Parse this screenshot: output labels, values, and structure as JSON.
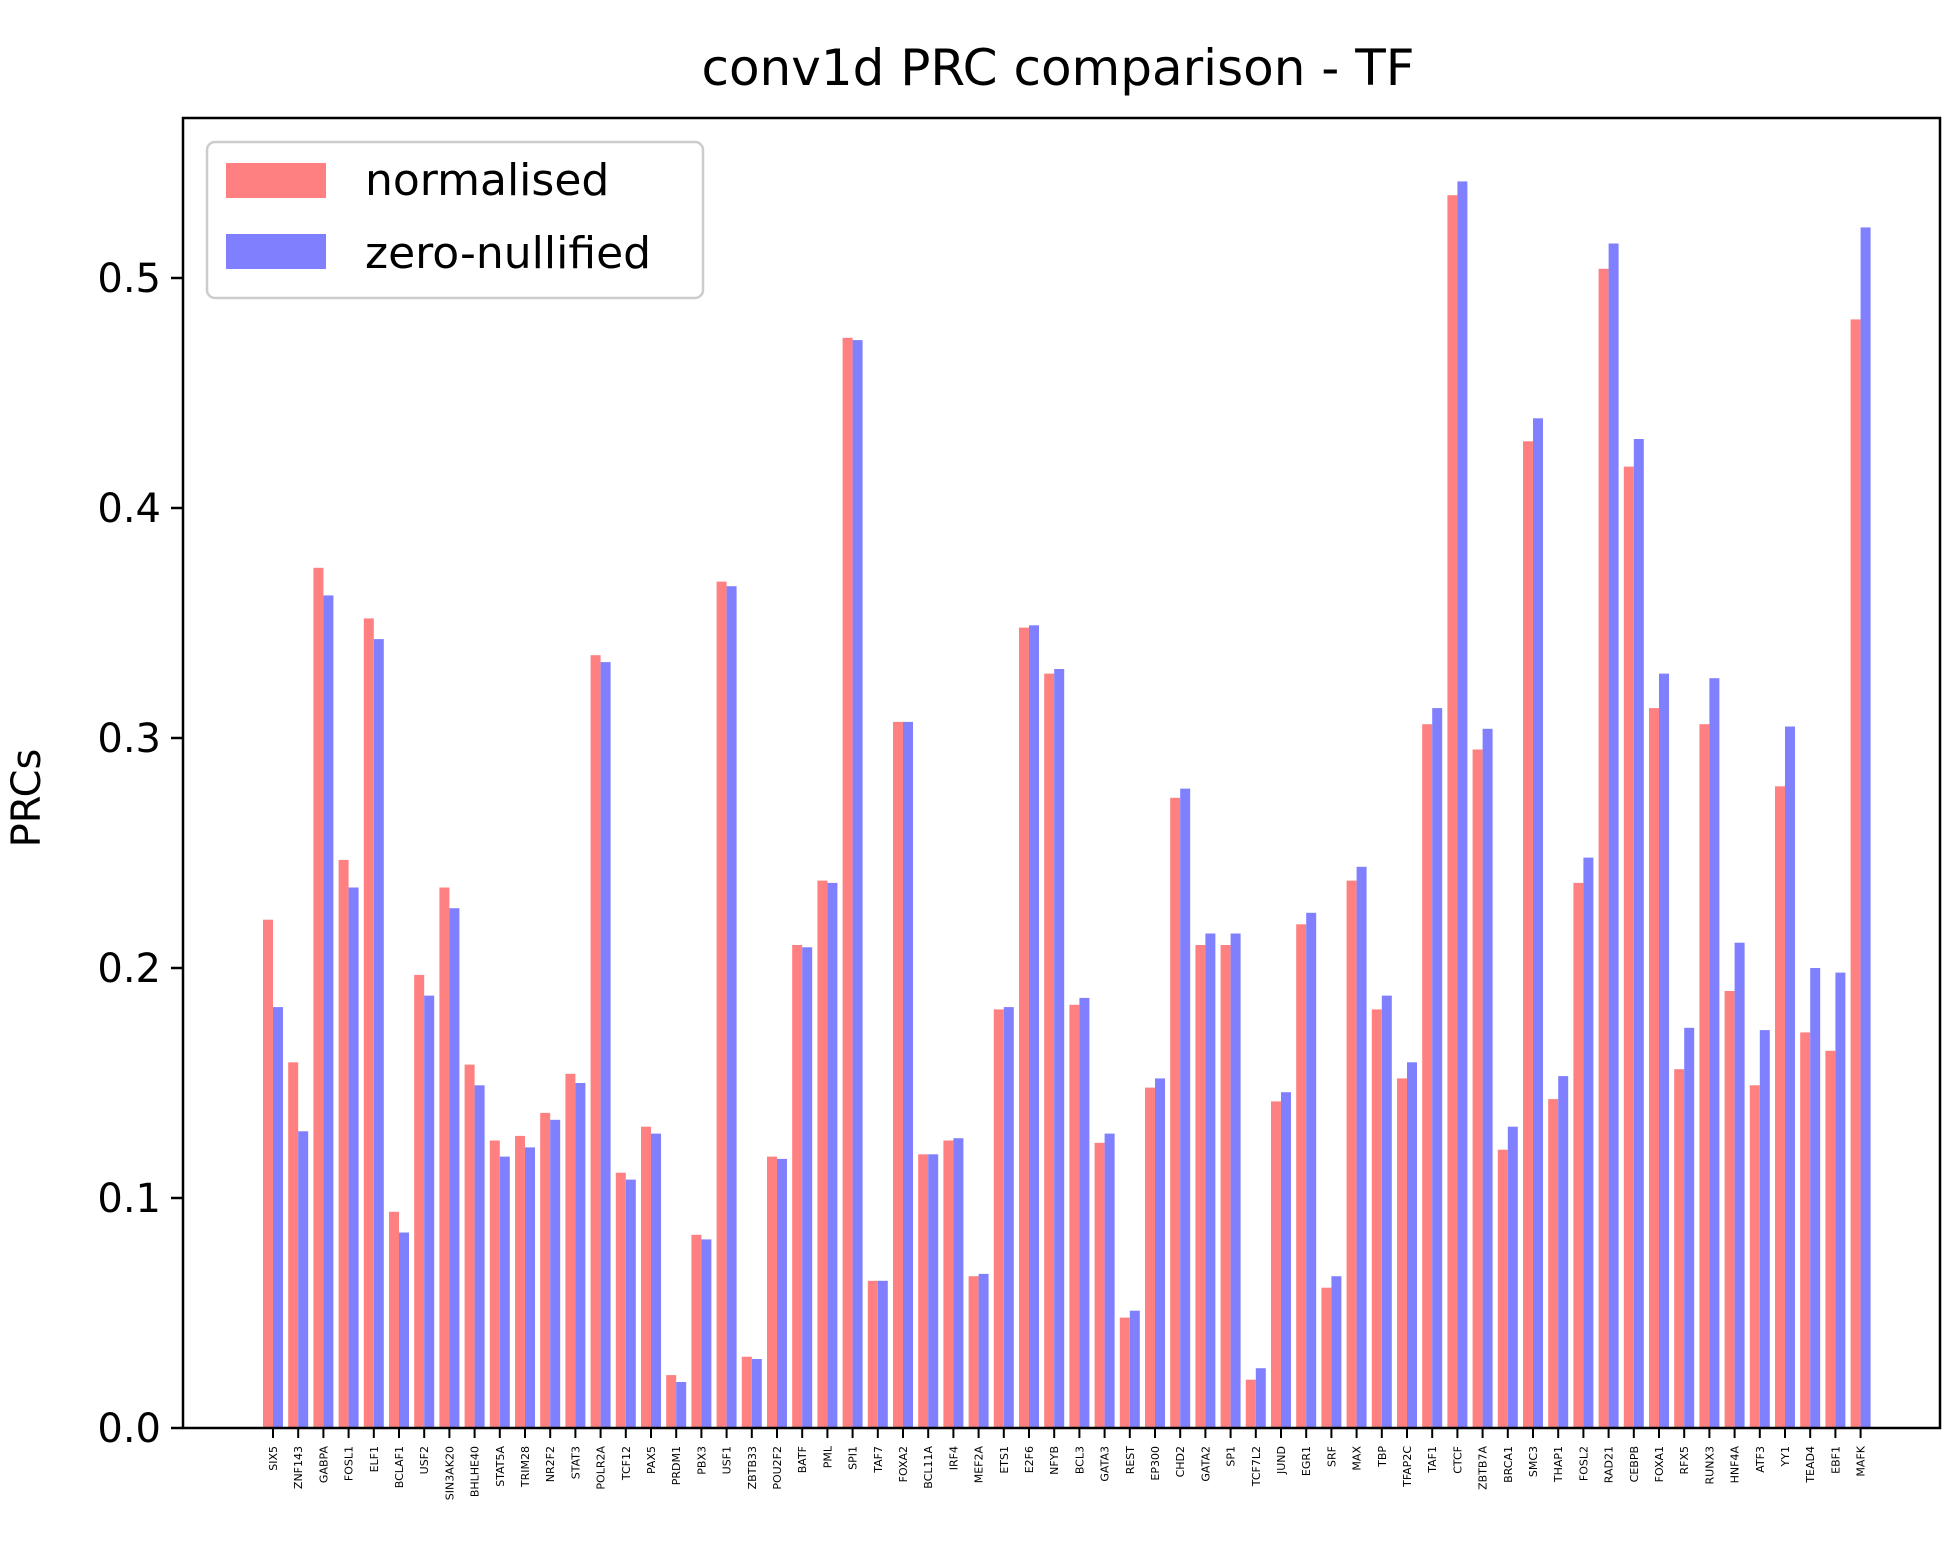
{
  "chart_data": {
    "type": "bar",
    "title": "conv1d PRC comparison - TF",
    "xlabel": "",
    "ylabel": "PRCs",
    "ylim": [
      0,
      0.57
    ],
    "yticks": [
      0.0,
      0.1,
      0.2,
      0.3,
      0.4,
      0.5
    ],
    "ytick_labels": [
      "0.0",
      "0.1",
      "0.2",
      "0.3",
      "0.4",
      "0.5"
    ],
    "grid": false,
    "legend_position": "top-left",
    "categories": [
      "SIX5",
      "ZNF143",
      "GABPA",
      "FOSL1",
      "ELF1",
      "BCLAF1",
      "USF2",
      "SIN3AK20",
      "BHLHE40",
      "STAT5A",
      "TRIM28",
      "NR2F2",
      "STAT3",
      "POLR2A",
      "TCF12",
      "PAX5",
      "PRDM1",
      "PBX3",
      "USF1",
      "ZBTB33",
      "POU2F2",
      "BATF",
      "PML",
      "SPI1",
      "TAF7",
      "FOXA2",
      "BCL11A",
      "IRF4",
      "MEF2A",
      "ETS1",
      "E2F6",
      "NFYB",
      "BCL3",
      "GATA3",
      "REST",
      "EP300",
      "CHD2",
      "GATA2",
      "SP1",
      "TCF7L2",
      "JUND",
      "EGR1",
      "SRF",
      "MAX",
      "TBP",
      "TFAP2C",
      "TAF1",
      "CTCF",
      "ZBTB7A",
      "BRCA1",
      "SMC3",
      "THAP1",
      "FOSL2",
      "RAD21",
      "CEBPB",
      "FOXA1",
      "RFX5",
      "RUNX3",
      "HNF4A",
      "ATF3",
      "YY1",
      "TEAD4",
      "EBF1",
      "MAFK"
    ],
    "series": [
      {
        "name": "normalised",
        "color": "#ff8080",
        "values": [
          0.221,
          0.159,
          0.374,
          0.247,
          0.352,
          0.094,
          0.197,
          0.235,
          0.158,
          0.125,
          0.127,
          0.137,
          0.154,
          0.336,
          0.111,
          0.131,
          0.023,
          0.084,
          0.368,
          0.031,
          0.118,
          0.21,
          0.238,
          0.474,
          0.064,
          0.307,
          0.119,
          0.125,
          0.066,
          0.182,
          0.348,
          0.328,
          0.184,
          0.124,
          0.048,
          0.148,
          0.274,
          0.21,
          0.21,
          0.021,
          0.142,
          0.219,
          0.061,
          0.238,
          0.182,
          0.152,
          0.306,
          0.536,
          0.295,
          0.121,
          0.429,
          0.143,
          0.237,
          0.504,
          0.418,
          0.313,
          0.156,
          0.306,
          0.19,
          0.149,
          0.279,
          0.172,
          0.164,
          0.482
        ]
      },
      {
        "name": "zero-nullified",
        "color": "#8080ff",
        "values": [
          0.183,
          0.129,
          0.362,
          0.235,
          0.343,
          0.085,
          0.188,
          0.226,
          0.149,
          0.118,
          0.122,
          0.134,
          0.15,
          0.333,
          0.108,
          0.128,
          0.02,
          0.082,
          0.366,
          0.03,
          0.117,
          0.209,
          0.237,
          0.473,
          0.064,
          0.307,
          0.119,
          0.126,
          0.067,
          0.183,
          0.349,
          0.33,
          0.187,
          0.128,
          0.051,
          0.152,
          0.278,
          0.215,
          0.215,
          0.026,
          0.146,
          0.224,
          0.066,
          0.244,
          0.188,
          0.159,
          0.313,
          0.542,
          0.304,
          0.131,
          0.439,
          0.153,
          0.248,
          0.515,
          0.43,
          0.328,
          0.174,
          0.326,
          0.211,
          0.173,
          0.305,
          0.2,
          0.198,
          0.522
        ]
      }
    ]
  }
}
